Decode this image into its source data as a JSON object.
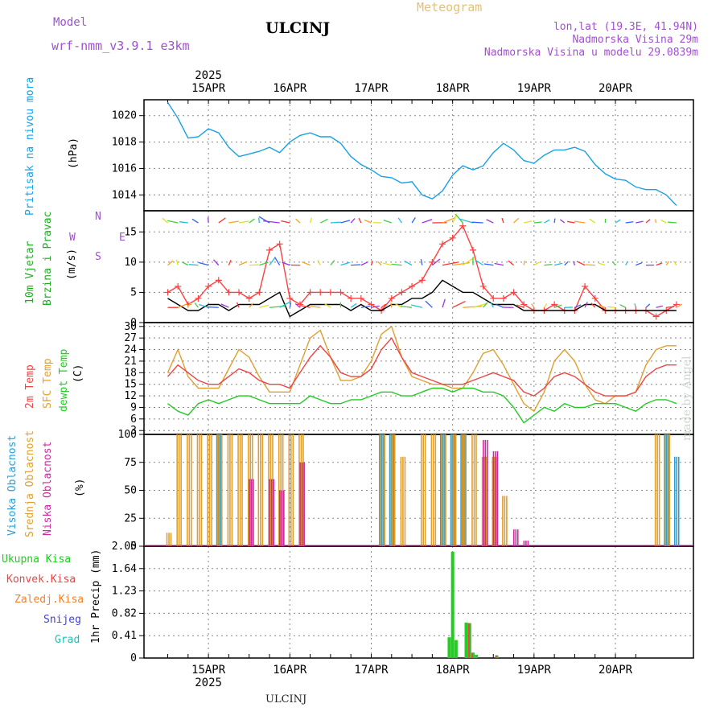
{
  "header": {
    "model_label": "Model",
    "model_name": "wrf-nmm_v3.9.1  e3km",
    "title": "ULCINJ",
    "meteogram_label": "Meteogram",
    "location_coords": "lon,lat (19.3E, 41.94N)",
    "altitude": "Nadmorska Visina 29m",
    "model_altitude": "Nadmorska Visina u modelu 29.0839m"
  },
  "footer": {
    "station": "ULCINJ",
    "signature": "made by Angel"
  },
  "colors": {
    "pressure": "#1aa0e6",
    "wind_speed": "#ff4040",
    "gust": "#000000",
    "t2m": "#ee4444",
    "sfc": "#e0a030",
    "dew": "#22cc22",
    "high_cloud": "#2a9fd6",
    "mid_cloud": "#e0a030",
    "low_cloud": "#d02aa0",
    "total_precip": "#22cc22",
    "conv_precip": "#ee4444"
  },
  "chart_data": [
    {
      "id": "pressure",
      "type": "line",
      "ylabel": "Pritisak na nivou mora",
      "unit": "(hPa)",
      "ylim": [
        1012.8,
        1021.2
      ],
      "yticks": [
        1014,
        1016,
        1018,
        1020
      ],
      "grid": true,
      "x_unit": "hours from 14APR 12Z",
      "x": [
        0,
        3,
        6,
        9,
        12,
        15,
        18,
        21,
        24,
        27,
        30,
        33,
        36,
        39,
        42,
        45,
        48,
        51,
        54,
        57,
        60,
        63,
        66,
        69,
        72,
        75,
        78,
        81,
        84,
        87,
        90,
        93,
        96,
        99,
        102,
        105,
        108,
        111,
        114,
        117,
        120,
        123,
        126,
        129,
        132,
        135,
        138,
        141,
        144,
        147,
        150
      ],
      "values": [
        1021,
        1019.8,
        1018.3,
        1018.4,
        1019.0,
        1018.7,
        1017.6,
        1016.9,
        1017.1,
        1017.3,
        1017.6,
        1017.2,
        1018.0,
        1018.5,
        1018.7,
        1018.4,
        1018.4,
        1017.9,
        1016.9,
        1016.3,
        1015.9,
        1015.4,
        1015.3,
        1014.9,
        1015.0,
        1014.0,
        1013.7,
        1014.3,
        1015.5,
        1016.2,
        1015.9,
        1016.2,
        1017.2,
        1017.9,
        1017.4,
        1016.6,
        1016.4,
        1017.0,
        1017.4,
        1017.4,
        1017.6,
        1017.3,
        1016.3,
        1015.6,
        1015.2,
        1015.1,
        1014.6,
        1014.4,
        1014.4,
        1014.0,
        1013.2
      ]
    },
    {
      "id": "wind",
      "type": "line",
      "ylabel": [
        "10m Vjetar",
        "Brzina i Pravac"
      ],
      "unit": "(m/s)",
      "ylim": [
        0,
        18.5
      ],
      "yticks": [
        0,
        5,
        10,
        15
      ],
      "grid": true,
      "compass": {
        "north": "N",
        "south": "S",
        "west": "W",
        "east": "E"
      },
      "x_unit": "hours from 14APR 12Z",
      "x": [
        0,
        3,
        6,
        9,
        12,
        15,
        18,
        21,
        24,
        27,
        30,
        33,
        36,
        39,
        42,
        45,
        48,
        51,
        54,
        57,
        60,
        63,
        66,
        69,
        72,
        75,
        78,
        81,
        84,
        87,
        90,
        93,
        96,
        99,
        102,
        105,
        108,
        111,
        114,
        117,
        120,
        123,
        126,
        129,
        132,
        135,
        138,
        141,
        144,
        147,
        150
      ],
      "series": [
        {
          "name": "speed",
          "values": [
            5,
            6,
            3,
            4,
            6,
            7,
            5,
            5,
            4,
            5,
            12,
            13,
            4,
            3,
            5,
            5,
            5,
            5,
            4,
            4,
            3,
            2,
            4,
            5,
            6,
            7,
            10,
            13,
            14,
            16,
            12,
            6,
            4,
            4,
            5,
            3,
            2,
            2,
            3,
            2,
            2,
            6,
            4,
            2,
            2,
            2,
            2,
            2,
            1,
            2,
            3
          ]
        },
        {
          "name": "gust",
          "values": [
            4,
            3,
            2,
            2,
            3,
            3,
            2,
            3,
            3,
            3,
            4,
            5,
            1,
            2,
            3,
            3,
            3,
            3,
            2,
            3,
            2,
            2,
            3,
            3,
            4,
            4,
            5,
            7,
            6,
            5,
            5,
            4,
            3,
            3,
            3,
            2,
            2,
            2,
            2,
            2,
            2,
            3,
            3,
            2,
            2,
            2,
            2,
            2,
            2,
            2,
            2
          ]
        }
      ]
    },
    {
      "id": "temperature",
      "type": "line",
      "ylabel": [
        "2m Temp",
        "SFC Temp",
        "dewpt Temp"
      ],
      "unit": "(C)",
      "ylim": [
        2,
        31
      ],
      "yticks": [
        3,
        6,
        9,
        12,
        15,
        18,
        21,
        24,
        27,
        30
      ],
      "grid": true,
      "x_unit": "hours from 14APR 12Z",
      "x": [
        0,
        3,
        6,
        9,
        12,
        15,
        18,
        21,
        24,
        27,
        30,
        33,
        36,
        39,
        42,
        45,
        48,
        51,
        54,
        57,
        60,
        63,
        66,
        69,
        72,
        75,
        78,
        81,
        84,
        87,
        90,
        93,
        96,
        99,
        102,
        105,
        108,
        111,
        114,
        117,
        120,
        123,
        126,
        129,
        132,
        135,
        138,
        141,
        144,
        147,
        150
      ],
      "series": [
        {
          "name": "2m Temp",
          "values": [
            17,
            20,
            18,
            16,
            15,
            15,
            17,
            19,
            18,
            16,
            15,
            15,
            14,
            18,
            22,
            25,
            22,
            18,
            17,
            17,
            19,
            24,
            27,
            22,
            18,
            17,
            16,
            15,
            15,
            15,
            16,
            17,
            18,
            17,
            16,
            13,
            12,
            14,
            17,
            18,
            17,
            15,
            13,
            12,
            12,
            12,
            13,
            17,
            19,
            20,
            20
          ]
        },
        {
          "name": "SFC Temp",
          "values": [
            18,
            24,
            17,
            14,
            14,
            14,
            19,
            24,
            22,
            17,
            13,
            13,
            13,
            20,
            27,
            29,
            22,
            16,
            16,
            17,
            21,
            28,
            30,
            22,
            17,
            16,
            15,
            15,
            14,
            14,
            18,
            23,
            24,
            20,
            15,
            10,
            8,
            13,
            21,
            24,
            21,
            15,
            11,
            10,
            12,
            12,
            13,
            20,
            24,
            25,
            25
          ]
        },
        {
          "name": "dewpt Temp",
          "values": [
            10,
            8,
            7,
            10,
            11,
            10,
            11,
            12,
            12,
            11,
            10,
            10,
            10,
            10,
            12,
            11,
            10,
            10,
            11,
            11,
            12,
            13,
            13,
            12,
            12,
            13,
            14,
            14,
            13,
            14,
            14,
            13,
            13,
            12,
            9,
            5,
            7,
            9,
            8,
            10,
            9,
            9,
            10,
            10,
            10,
            9,
            8,
            10,
            11,
            11,
            10
          ]
        }
      ]
    },
    {
      "id": "cloud",
      "type": "bar",
      "ylabel": [
        "Visoka Oblacnost",
        "Srednja Oblacnost",
        "Niska Oblacnost"
      ],
      "unit": "(%)",
      "ylim": [
        0,
        100
      ],
      "yticks": [
        0,
        25,
        50,
        75,
        100
      ],
      "grid": true,
      "x_unit": "hours from 14APR 12Z",
      "x": [
        0,
        3,
        6,
        9,
        12,
        15,
        18,
        21,
        24,
        27,
        30,
        33,
        36,
        39,
        42,
        45,
        48,
        51,
        54,
        57,
        60,
        63,
        66,
        69,
        72,
        75,
        78,
        81,
        84,
        87,
        90,
        93,
        96,
        99,
        102,
        105,
        108,
        111,
        114,
        117,
        120,
        123,
        126,
        129,
        132,
        135,
        138,
        141,
        144,
        147,
        150
      ],
      "series": [
        {
          "name": "Visoka Oblacnost",
          "values": [
            0,
            0,
            0,
            0,
            0,
            100,
            0,
            0,
            0,
            0,
            0,
            0,
            0,
            0,
            0,
            0,
            0,
            0,
            0,
            0,
            0,
            100,
            100,
            0,
            0,
            0,
            0,
            100,
            100,
            100,
            0,
            0,
            0,
            0,
            0,
            0,
            0,
            0,
            0,
            0,
            0,
            0,
            0,
            0,
            0,
            0,
            0,
            0,
            0,
            100,
            80
          ]
        },
        {
          "name": "Srednja Oblacnost",
          "values": [
            12,
            100,
            100,
            100,
            100,
            100,
            100,
            100,
            100,
            100,
            100,
            100,
            100,
            100,
            0,
            0,
            0,
            0,
            0,
            0,
            0,
            100,
            100,
            80,
            0,
            100,
            100,
            100,
            100,
            100,
            100,
            80,
            80,
            45,
            0,
            0,
            0,
            0,
            0,
            0,
            0,
            0,
            0,
            0,
            0,
            0,
            0,
            0,
            100,
            100,
            0
          ]
        },
        {
          "name": "Niska Oblacnost",
          "values": [
            0,
            0,
            0,
            0,
            0,
            0,
            0,
            0,
            60,
            0,
            60,
            50,
            0,
            75,
            0,
            0,
            0,
            0,
            0,
            0,
            0,
            0,
            0,
            0,
            0,
            0,
            0,
            0,
            0,
            0,
            0,
            95,
            85,
            0,
            15,
            5,
            0,
            0,
            0,
            0,
            0,
            0,
            0,
            0,
            0,
            0,
            0,
            0,
            0,
            0,
            0
          ]
        }
      ]
    },
    {
      "id": "precip",
      "type": "bar",
      "unit": "1hr Precip (mm)",
      "legend": [
        "Ukupna Kisa",
        "Konvek.Kisa",
        "Zaledj.Kisa",
        "Snijeg",
        "Grad"
      ],
      "legend_colors": [
        "#22cc22",
        "#ee4444",
        "#f08030",
        "#4040e0",
        "#20c0b0"
      ],
      "ylim": [
        0,
        2.05
      ],
      "yticks": [
        0,
        0.41,
        0.82,
        1.23,
        1.64,
        2.05
      ],
      "ytick_labels": [
        "0",
        "0.41",
        "0.82",
        "1.23",
        "1.64",
        "2.05"
      ],
      "grid": true,
      "x_unit": "hours from 14APR 12Z",
      "x": [
        83,
        84,
        85,
        88,
        89,
        90,
        91,
        97
      ],
      "series": [
        {
          "name": "Ukupna Kisa",
          "values": [
            0.38,
            1.95,
            0.33,
            0.65,
            0.64,
            0.1,
            0.06,
            0.05
          ]
        },
        {
          "name": "Konvek.Kisa",
          "values": [
            0,
            0,
            0,
            0,
            0.64,
            0.08,
            0,
            0.05
          ]
        }
      ]
    }
  ],
  "time_axis": {
    "year": "2025",
    "labels": [
      "15APR",
      "16APR",
      "17APR",
      "18APR",
      "19APR",
      "20APR"
    ],
    "label_hours": [
      12,
      36,
      60,
      84,
      108,
      132
    ]
  }
}
